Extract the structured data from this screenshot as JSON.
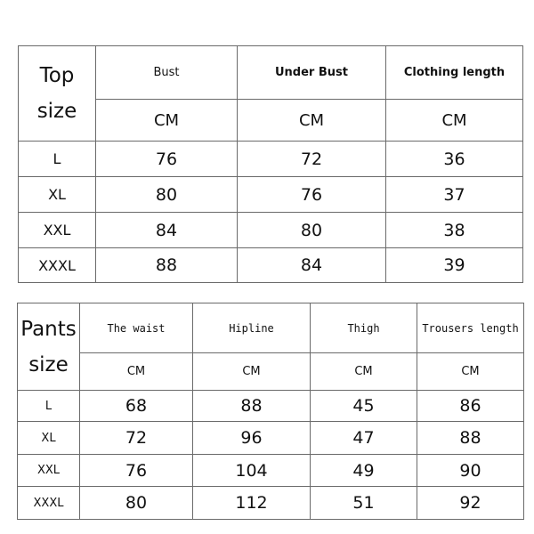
{
  "top_table": {
    "corner": [
      "Top",
      "size"
    ],
    "headers": [
      "Bust",
      "Under Bust",
      "Clothing length"
    ],
    "units": [
      "CM",
      "CM",
      "CM"
    ],
    "rows": [
      {
        "size": "L",
        "values": [
          "76",
          "72",
          "36"
        ]
      },
      {
        "size": "XL",
        "values": [
          "80",
          "76",
          "37"
        ]
      },
      {
        "size": "XXL",
        "values": [
          "84",
          "80",
          "38"
        ]
      },
      {
        "size": "XXXL",
        "values": [
          "88",
          "84",
          "39"
        ]
      }
    ]
  },
  "pants_table": {
    "corner": [
      "Pants",
      "size"
    ],
    "headers": [
      "The waist",
      "Hipline",
      "Thigh",
      "Trousers length"
    ],
    "units": [
      "CM",
      "CM",
      "CM",
      "CM"
    ],
    "rows": [
      {
        "size": "L",
        "values": [
          "68",
          "88",
          "45",
          "86"
        ]
      },
      {
        "size": "XL",
        "values": [
          "72",
          "96",
          "47",
          "88"
        ]
      },
      {
        "size": "XXL",
        "values": [
          "76",
          "104",
          "49",
          "90"
        ]
      },
      {
        "size": "XXXL",
        "values": [
          "80",
          "112",
          "51",
          "92"
        ]
      }
    ]
  }
}
